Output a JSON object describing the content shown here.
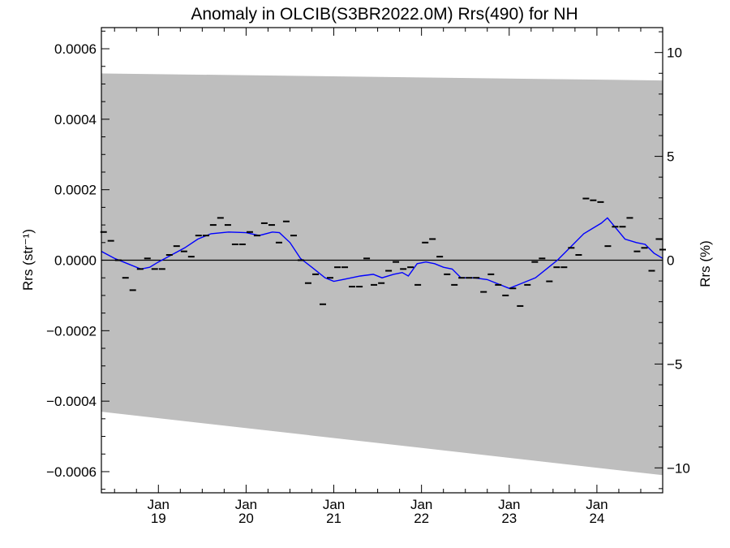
{
  "chart_data": {
    "type": "line",
    "title": "Anomaly in OLCIB(S3BR2022.0M) Rrs(490) for NH",
    "ylabel": "Rrs (str⁻¹)",
    "y2label": "Rrs (%)",
    "xlabel": "",
    "xlim": [
      2018.35,
      2024.75
    ],
    "ylim": [
      -0.00066,
      0.00066
    ],
    "y2lim": [
      -11.2,
      11.2
    ],
    "grid": false,
    "x_ticks": [
      {
        "x": 2019.0,
        "month": "Jan",
        "year": "19"
      },
      {
        "x": 2020.0,
        "month": "Jan",
        "year": "20"
      },
      {
        "x": 2021.0,
        "month": "Jan",
        "year": "21"
      },
      {
        "x": 2022.0,
        "month": "Jan",
        "year": "22"
      },
      {
        "x": 2023.0,
        "month": "Jan",
        "year": "23"
      },
      {
        "x": 2024.0,
        "month": "Jan",
        "year": "24"
      }
    ],
    "y_ticks": [
      {
        "v": 0.0006,
        "label": "0.0006"
      },
      {
        "v": 0.0004,
        "label": "0.0004"
      },
      {
        "v": 0.0002,
        "label": "0.0002"
      },
      {
        "v": 0.0,
        "label": "0.0000"
      },
      {
        "v": -0.0002,
        "label": "−0.0002"
      },
      {
        "v": -0.0004,
        "label": "−0.0004"
      },
      {
        "v": -0.0006,
        "label": "−0.0006"
      }
    ],
    "y2_ticks": [
      {
        "v": 10,
        "label": "10"
      },
      {
        "v": 5,
        "label": "5"
      },
      {
        "v": 0,
        "label": "0"
      },
      {
        "v": -5,
        "label": "−5"
      },
      {
        "v": -10,
        "label": "−10"
      }
    ],
    "band": {
      "x": [
        2018.35,
        2024.75
      ],
      "upper": [
        0.00053,
        0.00051
      ],
      "lower": [
        -0.00043,
        -0.00061
      ]
    },
    "monthly_anomaly": [
      [
        2018.375,
        8e-05
      ],
      [
        2018.458,
        5.5e-05
      ],
      [
        2018.542,
        0.0
      ],
      [
        2018.625,
        -5e-05
      ],
      [
        2018.708,
        -8.5e-05
      ],
      [
        2018.792,
        -2.5e-05
      ],
      [
        2018.875,
        5e-06
      ],
      [
        2018.958,
        -2.5e-05
      ],
      [
        2019.042,
        -2.5e-05
      ],
      [
        2019.125,
        1.5e-05
      ],
      [
        2019.208,
        4e-05
      ],
      [
        2019.292,
        2.5e-05
      ],
      [
        2019.375,
        1e-05
      ],
      [
        2019.458,
        7e-05
      ],
      [
        2019.542,
        7e-05
      ],
      [
        2019.625,
        0.0001
      ],
      [
        2019.708,
        0.00012
      ],
      [
        2019.792,
        0.0001
      ],
      [
        2019.875,
        4.5e-05
      ],
      [
        2019.958,
        4.5e-05
      ],
      [
        2020.042,
        8e-05
      ],
      [
        2020.125,
        7e-05
      ],
      [
        2020.208,
        0.000105
      ],
      [
        2020.292,
        0.0001
      ],
      [
        2020.375,
        5e-05
      ],
      [
        2020.458,
        0.00011
      ],
      [
        2020.542,
        7e-05
      ],
      [
        2020.625,
        0.0
      ],
      [
        2020.708,
        -6.5e-05
      ],
      [
        2020.792,
        -4e-05
      ],
      [
        2020.875,
        -0.000125
      ],
      [
        2020.958,
        -5e-05
      ],
      [
        2021.042,
        -2e-05
      ],
      [
        2021.125,
        -2e-05
      ],
      [
        2021.208,
        -7.5e-05
      ],
      [
        2021.292,
        -7.5e-05
      ],
      [
        2021.375,
        5e-06
      ],
      [
        2021.458,
        -7e-05
      ],
      [
        2021.542,
        -6.5e-05
      ],
      [
        2021.625,
        -3e-05
      ],
      [
        2021.708,
        -5e-06
      ],
      [
        2021.792,
        -2.5e-05
      ],
      [
        2021.875,
        -2e-05
      ],
      [
        2021.958,
        -7e-05
      ],
      [
        2022.042,
        5e-05
      ],
      [
        2022.125,
        6e-05
      ],
      [
        2022.208,
        1e-05
      ],
      [
        2022.292,
        -4e-05
      ],
      [
        2022.375,
        -7e-05
      ],
      [
        2022.458,
        -5e-05
      ],
      [
        2022.542,
        -5e-05
      ],
      [
        2022.625,
        -5e-05
      ],
      [
        2022.708,
        -9e-05
      ],
      [
        2022.792,
        -4e-05
      ],
      [
        2022.875,
        -7e-05
      ],
      [
        2022.958,
        -0.0001
      ],
      [
        2023.042,
        -8e-05
      ],
      [
        2023.125,
        -0.00013
      ],
      [
        2023.208,
        -7e-05
      ],
      [
        2023.292,
        -5e-06
      ],
      [
        2023.375,
        5e-06
      ],
      [
        2023.458,
        -6e-05
      ],
      [
        2023.542,
        -2e-05
      ],
      [
        2023.625,
        -2e-05
      ],
      [
        2023.708,
        3.5e-05
      ],
      [
        2023.792,
        1.5e-05
      ],
      [
        2023.875,
        0.000175
      ],
      [
        2023.958,
        0.00017
      ],
      [
        2024.042,
        0.000165
      ],
      [
        2024.125,
        4e-05
      ],
      [
        2024.208,
        9.5e-05
      ],
      [
        2024.292,
        9.5e-05
      ],
      [
        2024.375,
        0.00012
      ],
      [
        2024.458,
        2.5e-05
      ],
      [
        2024.542,
        3.5e-05
      ],
      [
        2024.625,
        -3e-05
      ],
      [
        2024.708,
        6e-05
      ],
      [
        2024.75,
        3e-05
      ]
    ],
    "smoothed_anomaly": [
      [
        2018.35,
        2.5e-05
      ],
      [
        2018.5,
        5e-06
      ],
      [
        2018.65,
        -1e-05
      ],
      [
        2018.8,
        -2.5e-05
      ],
      [
        2018.9,
        -2e-05
      ],
      [
        2019.0,
        -5e-06
      ],
      [
        2019.15,
        1.5e-05
      ],
      [
        2019.3,
        3.5e-05
      ],
      [
        2019.45,
        6e-05
      ],
      [
        2019.6,
        7.5e-05
      ],
      [
        2019.8,
        8e-05
      ],
      [
        2020.0,
        7.8e-05
      ],
      [
        2020.15,
        7e-05
      ],
      [
        2020.3,
        8e-05
      ],
      [
        2020.38,
        7.8e-05
      ],
      [
        2020.5,
        5e-05
      ],
      [
        2020.62,
        5e-06
      ],
      [
        2020.75,
        -2e-05
      ],
      [
        2020.9,
        -5e-05
      ],
      [
        2021.0,
        -6e-05
      ],
      [
        2021.1,
        -5.5e-05
      ],
      [
        2021.2,
        -5e-05
      ],
      [
        2021.3,
        -4.5e-05
      ],
      [
        2021.45,
        -4e-05
      ],
      [
        2021.55,
        -5e-05
      ],
      [
        2021.68,
        -4e-05
      ],
      [
        2021.78,
        -3.5e-05
      ],
      [
        2021.85,
        -4.5e-05
      ],
      [
        2021.95,
        -1e-05
      ],
      [
        2022.05,
        -5e-06
      ],
      [
        2022.15,
        -1e-05
      ],
      [
        2022.25,
        -2e-05
      ],
      [
        2022.35,
        -2.5e-05
      ],
      [
        2022.45,
        -5e-05
      ],
      [
        2022.6,
        -5e-05
      ],
      [
        2022.75,
        -5.5e-05
      ],
      [
        2022.9,
        -7e-05
      ],
      [
        2023.0,
        -8e-05
      ],
      [
        2023.1,
        -7e-05
      ],
      [
        2023.2,
        -6e-05
      ],
      [
        2023.3,
        -5e-05
      ],
      [
        2023.45,
        -2e-05
      ],
      [
        2023.55,
        0.0
      ],
      [
        2023.65,
        2.5e-05
      ],
      [
        2023.75,
        5e-05
      ],
      [
        2023.85,
        7.5e-05
      ],
      [
        2023.95,
        9e-05
      ],
      [
        2024.05,
        0.000105
      ],
      [
        2024.12,
        0.00012
      ],
      [
        2024.22,
        9e-05
      ],
      [
        2024.32,
        6e-05
      ],
      [
        2024.45,
        5e-05
      ],
      [
        2024.55,
        4.5e-05
      ],
      [
        2024.65,
        2e-05
      ],
      [
        2024.75,
        5e-06
      ]
    ],
    "colors": {
      "band": "#bebebe",
      "smoothed_line": "#0000ff",
      "zero_line": "#000000",
      "markers": "#000000",
      "axes": "#000000"
    }
  }
}
